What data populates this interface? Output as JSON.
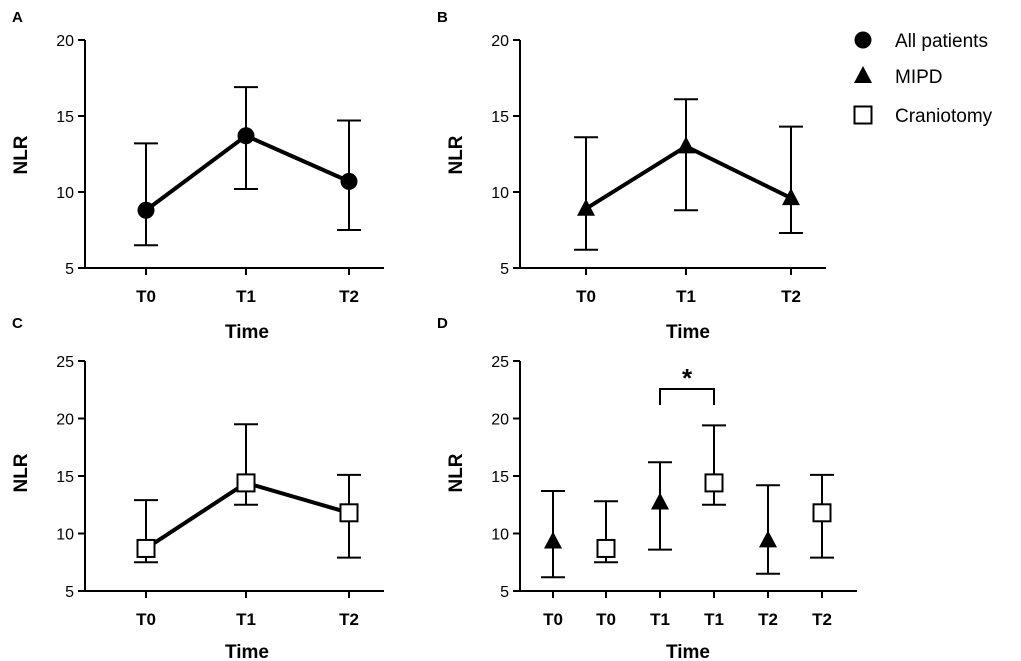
{
  "legend": [
    {
      "label": "All patients",
      "marker": "circle"
    },
    {
      "label": "MIPD",
      "marker": "triangle"
    },
    {
      "label": "Craniotomy",
      "marker": "square"
    }
  ],
  "chart_data": [
    {
      "panel": "A",
      "type": "line",
      "categories": [
        "T0",
        "T1",
        "T2"
      ],
      "xlabel": "Time",
      "ylabel": "NLR",
      "ylim": [
        5,
        20
      ],
      "yticks": [
        5,
        10,
        15,
        20
      ],
      "series": [
        {
          "name": "All patients",
          "marker": "circle",
          "connected": true,
          "points": [
            {
              "cat": 0,
              "y": 8.8,
              "lo": 6.5,
              "hi": 13.2
            },
            {
              "cat": 1,
              "y": 13.7,
              "lo": 10.2,
              "hi": 16.9
            },
            {
              "cat": 2,
              "y": 10.7,
              "lo": 7.5,
              "hi": 14.7
            }
          ]
        }
      ]
    },
    {
      "panel": "B",
      "type": "line",
      "categories": [
        "T0",
        "T1",
        "T2"
      ],
      "xlabel": "Time",
      "ylabel": "NLR",
      "ylim": [
        5,
        20
      ],
      "yticks": [
        5,
        10,
        15,
        20
      ],
      "series": [
        {
          "name": "MIPD",
          "marker": "triangle",
          "connected": true,
          "points": [
            {
              "cat": 0,
              "y": 8.9,
              "lo": 6.2,
              "hi": 13.6
            },
            {
              "cat": 1,
              "y": 13.0,
              "lo": 8.8,
              "hi": 16.1
            },
            {
              "cat": 2,
              "y": 9.6,
              "lo": 7.3,
              "hi": 14.3
            }
          ]
        }
      ]
    },
    {
      "panel": "C",
      "type": "line",
      "categories": [
        "T0",
        "T1",
        "T2"
      ],
      "xlabel": "Time",
      "ylabel": "NLR",
      "ylim": [
        5,
        25
      ],
      "yticks": [
        5,
        10,
        15,
        20,
        25
      ],
      "series": [
        {
          "name": "Craniotomy",
          "marker": "square",
          "connected": true,
          "points": [
            {
              "cat": 0,
              "y": 8.7,
              "lo": 7.5,
              "hi": 12.9
            },
            {
              "cat": 1,
              "y": 14.4,
              "lo": 12.5,
              "hi": 19.5
            },
            {
              "cat": 2,
              "y": 11.8,
              "lo": 7.9,
              "hi": 15.1
            }
          ]
        }
      ]
    },
    {
      "panel": "D",
      "type": "scatter",
      "categories": [
        "T0",
        "T0",
        "T1",
        "T1",
        "T2",
        "T2"
      ],
      "xlabel": "Time",
      "ylabel": "NLR",
      "ylim": [
        5,
        25
      ],
      "yticks": [
        5,
        10,
        15,
        20,
        25
      ],
      "series": [
        {
          "name": "MIPD",
          "marker": "triangle",
          "connected": false,
          "points": [
            {
              "cat": 0,
              "y": 9.3,
              "lo": 6.2,
              "hi": 13.7
            },
            {
              "cat": 2,
              "y": 12.7,
              "lo": 8.6,
              "hi": 16.2
            },
            {
              "cat": 4,
              "y": 9.4,
              "lo": 6.5,
              "hi": 14.2
            }
          ]
        },
        {
          "name": "Craniotomy",
          "marker": "square",
          "connected": false,
          "points": [
            {
              "cat": 1,
              "y": 8.7,
              "lo": 7.5,
              "hi": 12.8
            },
            {
              "cat": 3,
              "y": 14.4,
              "lo": 12.5,
              "hi": 19.4
            },
            {
              "cat": 5,
              "y": 11.8,
              "lo": 7.9,
              "hi": 15.1
            }
          ]
        }
      ],
      "annotations": [
        {
          "type": "significance",
          "from_cat": 2,
          "to_cat": 3,
          "text": "*"
        }
      ]
    }
  ]
}
